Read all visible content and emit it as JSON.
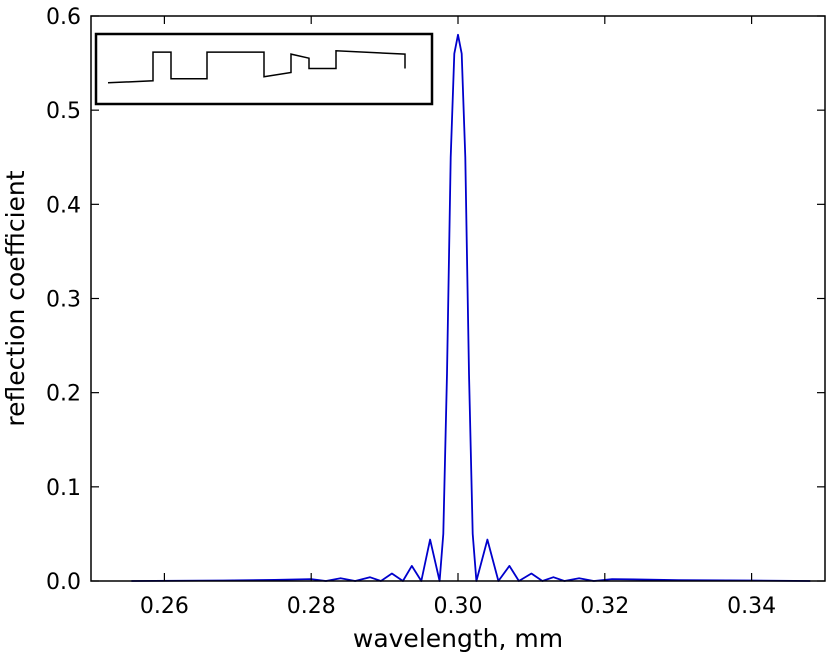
{
  "chart_data": {
    "type": "line",
    "title": "",
    "xlabel": "wavelength, mm",
    "ylabel": "reflection coefficient",
    "xlim": [
      0.25,
      0.35
    ],
    "ylim": [
      0.0,
      0.6
    ],
    "xticks": [
      0.26,
      0.28,
      0.3,
      0.32,
      0.34
    ],
    "xtick_labels": [
      "0.26",
      "0.28",
      "0.30",
      "0.32",
      "0.34"
    ],
    "yticks": [
      0.0,
      0.1,
      0.2,
      0.3,
      0.4,
      0.5,
      0.6
    ],
    "ytick_labels": [
      "0.0",
      "0.1",
      "0.2",
      "0.3",
      "0.4",
      "0.5",
      "0.6"
    ],
    "grid": false,
    "series": [
      {
        "color": "#0000cc",
        "peak": {
          "x": 0.3,
          "y": 0.58
        },
        "points": [
          [
            0.2555,
            0.0
          ],
          [
            0.268,
            0.0005
          ],
          [
            0.275,
            0.0012
          ],
          [
            0.28,
            0.002
          ],
          [
            0.282,
            0.0
          ],
          [
            0.284,
            0.003
          ],
          [
            0.286,
            0.0
          ],
          [
            0.288,
            0.004
          ],
          [
            0.2895,
            0.0
          ],
          [
            0.291,
            0.008
          ],
          [
            0.2925,
            0.0
          ],
          [
            0.2937,
            0.016
          ],
          [
            0.295,
            0.0
          ],
          [
            0.2962,
            0.044
          ],
          [
            0.2975,
            0.0
          ],
          [
            0.298,
            0.05
          ],
          [
            0.2985,
            0.22
          ],
          [
            0.299,
            0.45
          ],
          [
            0.2995,
            0.56
          ],
          [
            0.3,
            0.58
          ],
          [
            0.3005,
            0.56
          ],
          [
            0.301,
            0.45
          ],
          [
            0.3015,
            0.22
          ],
          [
            0.302,
            0.05
          ],
          [
            0.3025,
            0.0
          ],
          [
            0.304,
            0.044
          ],
          [
            0.3055,
            0.0
          ],
          [
            0.307,
            0.016
          ],
          [
            0.3083,
            0.0
          ],
          [
            0.31,
            0.008
          ],
          [
            0.3115,
            0.0
          ],
          [
            0.313,
            0.004
          ],
          [
            0.3145,
            0.0
          ],
          [
            0.3165,
            0.003
          ],
          [
            0.3185,
            0.0
          ],
          [
            0.321,
            0.002
          ],
          [
            0.33,
            0.001
          ],
          [
            0.34,
            0.0005
          ],
          [
            0.348,
            0.0
          ]
        ]
      }
    ]
  },
  "inset": {
    "description_color": "#000000",
    "profile": [
      [
        0.0,
        0.2
      ],
      [
        0.15,
        0.25
      ],
      [
        0.15,
        0.95
      ],
      [
        0.21,
        0.95
      ],
      [
        0.21,
        0.3
      ],
      [
        0.33,
        0.3
      ],
      [
        0.33,
        0.95
      ],
      [
        0.52,
        0.95
      ],
      [
        0.52,
        0.35
      ],
      [
        0.61,
        0.45
      ],
      [
        0.61,
        0.9
      ],
      [
        0.67,
        0.8
      ],
      [
        0.67,
        0.55
      ],
      [
        0.76,
        0.55
      ],
      [
        0.76,
        0.98
      ],
      [
        0.99,
        0.9
      ],
      [
        0.99,
        0.55
      ]
    ]
  }
}
